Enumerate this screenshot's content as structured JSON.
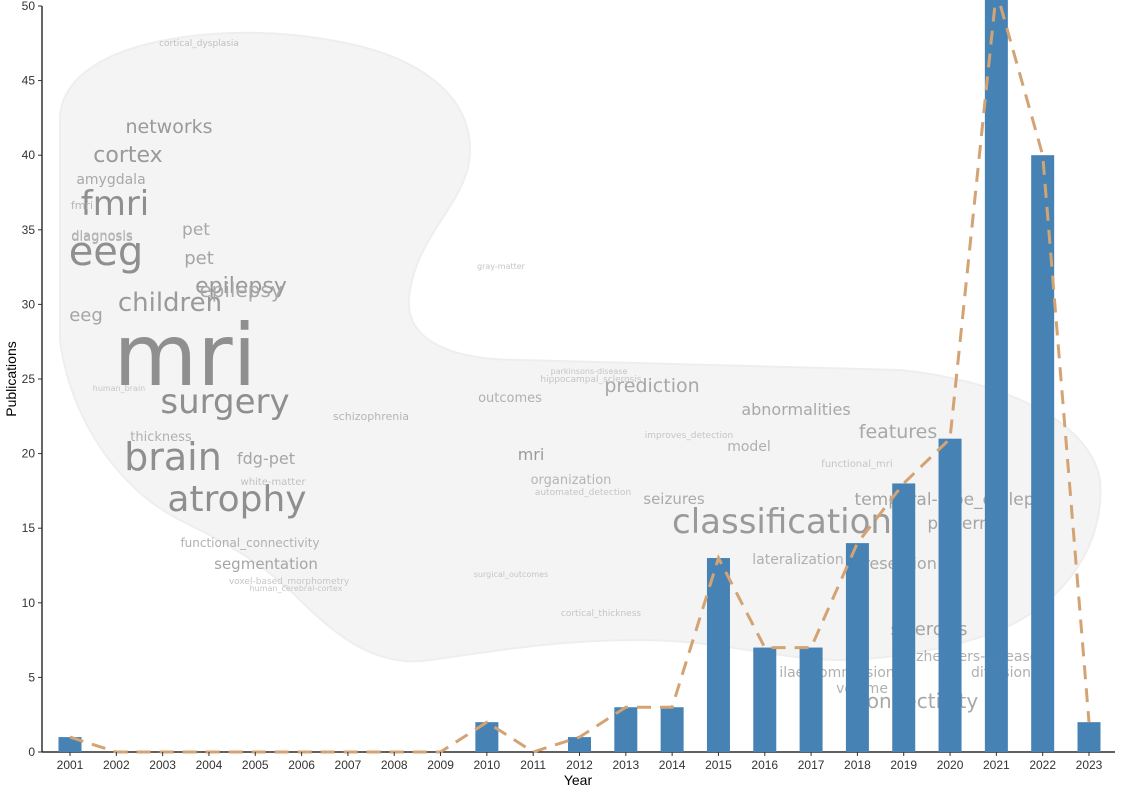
{
  "chart_data": {
    "type": "bar",
    "xlabel": "Year",
    "ylabel": "Publications",
    "ylim": [
      0,
      50
    ],
    "yticks": [
      0,
      5,
      10,
      15,
      20,
      25,
      30,
      35,
      40,
      45,
      50
    ],
    "categories": [
      "2001",
      "2002",
      "2003",
      "2004",
      "2005",
      "2006",
      "2007",
      "2008",
      "2009",
      "2010",
      "2011",
      "2012",
      "2013",
      "2014",
      "2015",
      "2016",
      "2017",
      "2018",
      "2019",
      "2020",
      "2021",
      "2022",
      "2023"
    ],
    "values": [
      1,
      0,
      0,
      0,
      0,
      0,
      0,
      0,
      0,
      2,
      0,
      1,
      3,
      3,
      13,
      7,
      7,
      14,
      18,
      21,
      51,
      40,
      2
    ],
    "trend_line": "dashed",
    "grid": false,
    "colors": {
      "bar": "#4682b4",
      "trend": "#d4a373",
      "cloud_dark": "#8f8f8f",
      "cloud_light": "#bdbdbd"
    }
  },
  "background_wordcloud": {
    "words": [
      "mri",
      "eeg",
      "fmri",
      "brain",
      "atrophy",
      "surgery",
      "children",
      "cortex",
      "epilepsy",
      "networks",
      "amygdala",
      "diagnosis",
      "pet",
      "fdg-pet",
      "thickness",
      "segmentation",
      "functional_connectivity",
      "classification",
      "prediction",
      "abnormalities",
      "features",
      "model",
      "outcomes",
      "organization",
      "seizures",
      "temporal-lobe_epilepsy",
      "patterns",
      "lateralization",
      "resection",
      "sclerosis",
      "connectivity",
      "alzheimers-disease",
      "ilae_commission",
      "volume",
      "diffusion",
      "schizophrenia",
      "cortical_dysplasia",
      "white-matter",
      "human_brain",
      "voxel-based_morphometry",
      "gray-matter",
      "hippocampal_sclerosis",
      "parkinsons-disease",
      "automated_detection",
      "improves_detection",
      "functional_mri",
      "cortical_thickness",
      "surgical_outcomes",
      "human_cerebral-cortex",
      "mri",
      "pet",
      "eeg",
      "fmri",
      "epilepsy",
      "diagnosis"
    ]
  }
}
